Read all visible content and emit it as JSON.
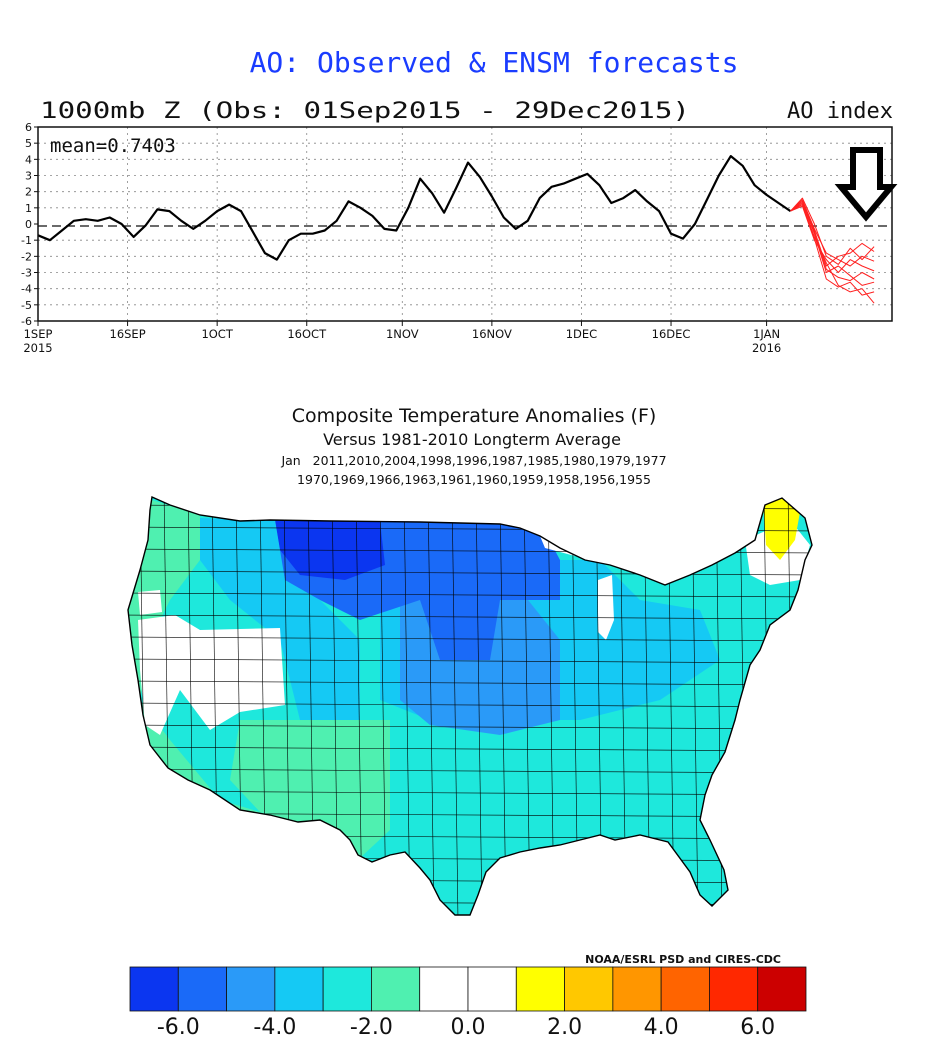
{
  "ao_panel": {
    "title": "AO: Observed & ENSM forecasts",
    "subtitle": "1000mb Z (Obs: 01Sep2015 - 29Dec2015)",
    "right_label": "AO index",
    "mean_label": "mean=0.7403",
    "colors": {
      "title": "#1a3cff",
      "observed": "#000000",
      "forecast": "#ff2020",
      "arrow": "#000000"
    },
    "icon": "down-arrow-icon"
  },
  "map_panel": {
    "title": "Composite Temperature Anomalies (F)",
    "subtitle": "Versus 1981-2010 Longterm Average",
    "years_line1": "Jan   2011,2010,2004,1998,1996,1987,1985,1980,1979,1977",
    "years_line2": "1970,1969,1966,1963,1961,1960,1959,1958,1956,1955",
    "credit": "NOAA/ESRL PSD and CIRES-CDC"
  },
  "chart_data": [
    {
      "type": "line",
      "ylim": [
        -6,
        6
      ],
      "yticks": [
        "6",
        "5",
        "4",
        "3",
        "2",
        "1",
        "0",
        "-1",
        "-2",
        "-3",
        "-4",
        "-5",
        "-6"
      ],
      "xticks": [
        {
          "label": "1SEP",
          "sub": "2015",
          "day": 0
        },
        {
          "label": "16SEP",
          "sub": "",
          "day": 15
        },
        {
          "label": "1OCT",
          "sub": "",
          "day": 30
        },
        {
          "label": "16OCT",
          "sub": "",
          "day": 45
        },
        {
          "label": "1NOV",
          "sub": "",
          "day": 61
        },
        {
          "label": "16NOV",
          "sub": "",
          "day": 76
        },
        {
          "label": "1DEC",
          "sub": "",
          "day": 91
        },
        {
          "label": "16DEC",
          "sub": "",
          "day": 106
        },
        {
          "label": "1JAN",
          "sub": "2016",
          "day": 122
        }
      ],
      "grid": true,
      "reference_line": 0,
      "series": [
        {
          "kind": "observed",
          "points": [
            [
              0,
              -0.7
            ],
            [
              2,
              -1.0
            ],
            [
              4,
              -0.4
            ],
            [
              6,
              0.2
            ],
            [
              8,
              0.3
            ],
            [
              10,
              0.2
            ],
            [
              12,
              0.4
            ],
            [
              14,
              0.0
            ],
            [
              16,
              -0.8
            ],
            [
              18,
              -0.1
            ],
            [
              20,
              0.9
            ],
            [
              22,
              0.8
            ],
            [
              24,
              0.2
            ],
            [
              26,
              -0.3
            ],
            [
              28,
              0.2
            ],
            [
              30,
              0.8
            ],
            [
              32,
              1.2
            ],
            [
              34,
              0.8
            ],
            [
              36,
              -0.5
            ],
            [
              38,
              -1.8
            ],
            [
              40,
              -2.2
            ],
            [
              42,
              -1.0
            ],
            [
              44,
              -0.6
            ],
            [
              46,
              -0.6
            ],
            [
              48,
              -0.4
            ],
            [
              50,
              0.2
            ],
            [
              52,
              1.4
            ],
            [
              54,
              1.0
            ],
            [
              56,
              0.5
            ],
            [
              58,
              -0.3
            ],
            [
              60,
              -0.4
            ],
            [
              62,
              1.0
            ],
            [
              64,
              2.8
            ],
            [
              66,
              1.9
            ],
            [
              68,
              0.7
            ],
            [
              70,
              2.2
            ],
            [
              72,
              3.8
            ],
            [
              74,
              2.9
            ],
            [
              76,
              1.7
            ],
            [
              78,
              0.4
            ],
            [
              80,
              -0.3
            ],
            [
              82,
              0.2
            ],
            [
              84,
              1.6
            ],
            [
              86,
              2.3
            ],
            [
              88,
              2.5
            ],
            [
              90,
              2.8
            ],
            [
              92,
              3.1
            ],
            [
              94,
              2.4
            ],
            [
              96,
              1.3
            ],
            [
              98,
              1.6
            ],
            [
              100,
              2.1
            ],
            [
              102,
              1.4
            ],
            [
              104,
              0.8
            ],
            [
              106,
              -0.6
            ],
            [
              108,
              -0.9
            ],
            [
              110,
              0.0
            ],
            [
              112,
              1.5
            ],
            [
              114,
              3.0
            ],
            [
              116,
              4.2
            ],
            [
              118,
              3.6
            ],
            [
              120,
              2.4
            ],
            [
              122,
              1.8
            ],
            [
              124,
              1.3
            ],
            [
              126,
              0.8
            ]
          ]
        },
        {
          "kind": "forecast",
          "points": [
            [
              126,
              0.8
            ],
            [
              128,
              1.6
            ],
            [
              130,
              0.0
            ],
            [
              132,
              -2.0
            ],
            [
              134,
              -2.5
            ],
            [
              136,
              -1.5
            ],
            [
              138,
              -2.2
            ],
            [
              140,
              -1.4
            ]
          ]
        },
        {
          "kind": "forecast",
          "points": [
            [
              126,
              0.8
            ],
            [
              128,
              1.4
            ],
            [
              130,
              -0.5
            ],
            [
              132,
              -2.8
            ],
            [
              134,
              -3.3
            ],
            [
              136,
              -3.5
            ],
            [
              138,
              -3.0
            ],
            [
              140,
              -3.4
            ]
          ]
        },
        {
          "kind": "forecast",
          "points": [
            [
              126,
              0.8
            ],
            [
              128,
              1.2
            ],
            [
              130,
              -0.8
            ],
            [
              132,
              -2.4
            ],
            [
              134,
              -3.8
            ],
            [
              136,
              -4.2
            ],
            [
              138,
              -4.0
            ],
            [
              140,
              -4.9
            ]
          ]
        },
        {
          "kind": "forecast",
          "points": [
            [
              126,
              0.8
            ],
            [
              128,
              1.5
            ],
            [
              130,
              -0.3
            ],
            [
              132,
              -1.8
            ],
            [
              134,
              -2.2
            ],
            [
              136,
              -2.6
            ],
            [
              138,
              -2.0
            ],
            [
              140,
              -2.3
            ]
          ]
        },
        {
          "kind": "forecast",
          "points": [
            [
              126,
              0.8
            ],
            [
              128,
              1.3
            ],
            [
              130,
              -0.6
            ],
            [
              132,
              -3.0
            ],
            [
              134,
              -2.6
            ],
            [
              136,
              -3.2
            ],
            [
              138,
              -3.8
            ],
            [
              140,
              -3.6
            ]
          ]
        },
        {
          "kind": "forecast",
          "points": [
            [
              126,
              0.8
            ],
            [
              128,
              1.1
            ],
            [
              130,
              -1.0
            ],
            [
              132,
              -2.2
            ],
            [
              134,
              -3.0
            ],
            [
              136,
              -2.2
            ],
            [
              138,
              -2.6
            ],
            [
              140,
              -2.9
            ]
          ]
        },
        {
          "kind": "forecast",
          "points": [
            [
              126,
              0.8
            ],
            [
              128,
              1.4
            ],
            [
              130,
              -0.4
            ],
            [
              132,
              -2.6
            ],
            [
              134,
              -2.0
            ],
            [
              136,
              -1.8
            ],
            [
              138,
              -1.2
            ],
            [
              140,
              -1.7
            ]
          ]
        },
        {
          "kind": "forecast",
          "points": [
            [
              126,
              0.8
            ],
            [
              128,
              1.2
            ],
            [
              130,
              -0.9
            ],
            [
              132,
              -3.4
            ],
            [
              134,
              -3.9
            ],
            [
              136,
              -3.6
            ],
            [
              138,
              -4.4
            ],
            [
              140,
              -4.2
            ]
          ]
        }
      ]
    },
    {
      "type": "heatmap",
      "colorbar": {
        "labels": [
          "-6.0",
          "-4.0",
          "-2.0",
          "0.0",
          "2.0",
          "4.0",
          "6.0"
        ],
        "colors": [
          "#0b36f0",
          "#1a6af8",
          "#2a9af8",
          "#15c9f4",
          "#1ee8dc",
          "#4ff0b0",
          "#ffffff",
          "#ffffff",
          "#ffff00",
          "#ffc800",
          "#ff9600",
          "#ff6400",
          "#ff2800",
          "#cc0000"
        ]
      },
      "region_colors": {
        "coast": "#4ff0b0",
        "great_basin": "#ffffff",
        "southwest": "#4ff0b0",
        "plains_north": "#1a6af8",
        "montana": "#0b36f0",
        "central": "#2a9af8",
        "midwest": "#15c9f4",
        "south": "#1ee8dc",
        "east": "#1ee8dc",
        "maine": "#ffff00",
        "new_england": "#ffffff"
      }
    }
  ]
}
